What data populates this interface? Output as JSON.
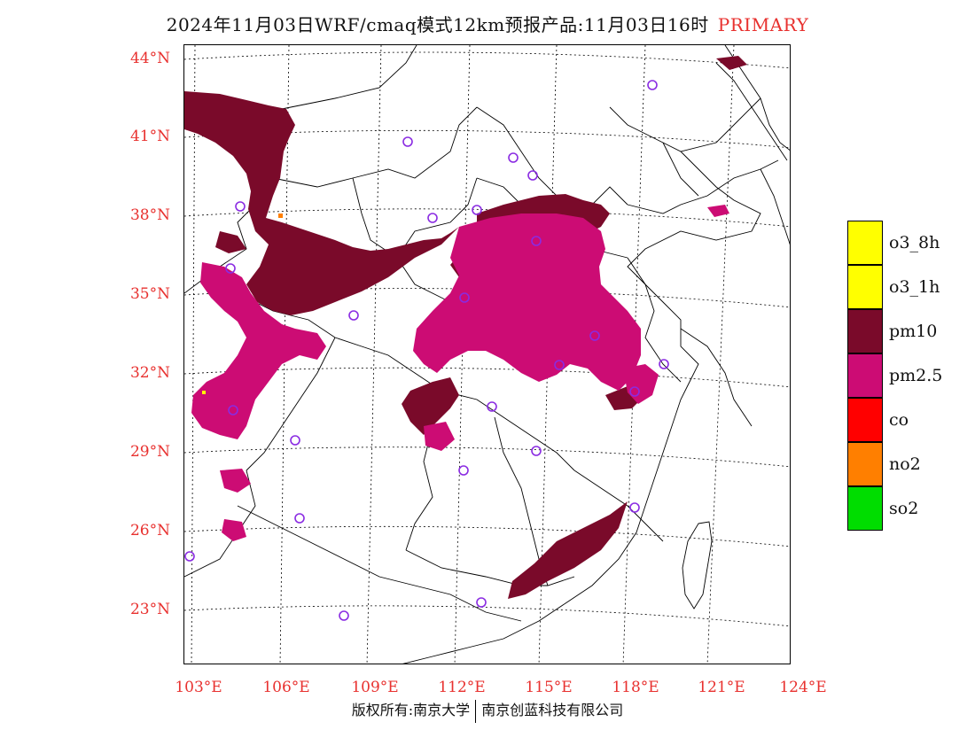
{
  "header": {
    "title": "2024年11月03日WRF/cmaq模式12km预报产品:11月03日16时",
    "mode": "PRIMARY"
  },
  "axes": {
    "lat_labels": [
      "44°N",
      "41°N",
      "38°N",
      "35°N",
      "32°N",
      "29°N",
      "26°N",
      "23°N"
    ],
    "lon_labels": [
      "103°E",
      "106°E",
      "109°E",
      "112°E",
      "115°E",
      "118°E",
      "121°E",
      "124°E"
    ]
  },
  "legend": {
    "items": [
      {
        "label": "o3_8h",
        "color": "#ffff00"
      },
      {
        "label": "o3_1h",
        "color": "#ffff00"
      },
      {
        "label": "pm10",
        "color": "#7a0a2a"
      },
      {
        "label": "pm2.5",
        "color": "#cc0c74"
      },
      {
        "label": "co",
        "color": "#ff0000"
      },
      {
        "label": "no2",
        "color": "#ff7f00"
      },
      {
        "label": "so2",
        "color": "#00dd00"
      }
    ]
  },
  "colors": {
    "pm10": "#7a0a2a",
    "pm25": "#cc0c74",
    "station_marker": "#8a2be2",
    "axis_text": "#e8312f"
  },
  "footer": {
    "left": "版权所有:南京大学",
    "right": "南京创蓝科技有限公司"
  }
}
